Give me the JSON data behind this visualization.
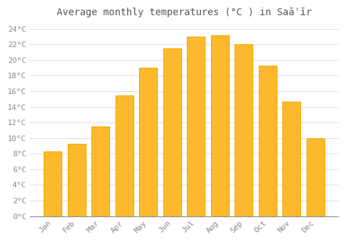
{
  "title": "Average monthly temperatures (°C ) in Saāʿīr",
  "months": [
    "Jan",
    "Feb",
    "Mar",
    "Apr",
    "May",
    "Jun",
    "Jul",
    "Aug",
    "Sep",
    "Oct",
    "Nov",
    "Dec"
  ],
  "values": [
    8.3,
    9.3,
    11.5,
    15.5,
    19.0,
    21.5,
    23.0,
    23.2,
    22.0,
    19.3,
    14.7,
    10.0
  ],
  "bar_color": "#FDB92E",
  "bar_edge_color": "#F5A800",
  "background_color": "#FFFFFF",
  "grid_color": "#DDDDDD",
  "text_color": "#888888",
  "title_color": "#555555",
  "ylim": [
    0,
    25
  ],
  "ytick_step": 2,
  "title_fontsize": 10,
  "tick_fontsize": 8,
  "font_family": "monospace"
}
